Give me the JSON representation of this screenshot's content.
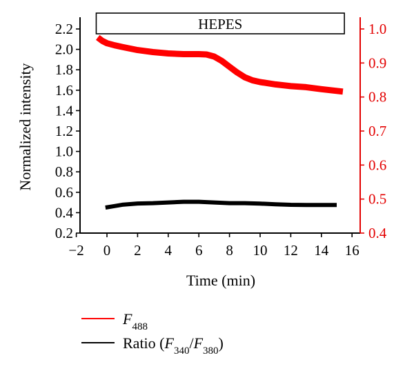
{
  "chart_data": {
    "type": "line",
    "xlabel": "Time (min)",
    "ylabel_left": "Normalized intensity",
    "ylabel_right": "",
    "xlim": [
      -2,
      16.5
    ],
    "ylim_left": [
      0.2,
      2.3
    ],
    "ylim_right": [
      0.4,
      1.03
    ],
    "x_ticks": [
      "−2",
      "0",
      "2",
      "4",
      "6",
      "8",
      "10",
      "12",
      "14",
      "16"
    ],
    "y_left_ticks": [
      "0.2",
      "0.4",
      "0.6",
      "0.8",
      "1.0",
      "1.2",
      "1.4",
      "1.6",
      "1.8",
      "2.0",
      "2.2"
    ],
    "y_right_ticks": [
      "0.4",
      "0.5",
      "0.6",
      "0.7",
      "0.8",
      "0.9",
      "1.0"
    ],
    "annotation": {
      "label": "HEPES",
      "x_start": -0.7,
      "x_end": 15.5
    },
    "series": [
      {
        "name": "F488",
        "axis": "right",
        "color": "#ff0000",
        "x": [
          -0.6,
          -0.3,
          0,
          0.5,
          1,
          2,
          3,
          4,
          5,
          6,
          6.5,
          7,
          7.5,
          8,
          8.5,
          9,
          9.5,
          10,
          11,
          12,
          13,
          14,
          15,
          15.4
        ],
        "y": [
          0.975,
          0.965,
          0.958,
          0.952,
          0.947,
          0.938,
          0.932,
          0.928,
          0.926,
          0.926,
          0.925,
          0.919,
          0.906,
          0.889,
          0.872,
          0.858,
          0.849,
          0.844,
          0.837,
          0.832,
          0.829,
          0.823,
          0.818,
          0.816
        ]
      },
      {
        "name": "Ratio (F340/F380)",
        "axis": "left",
        "color": "#000000",
        "x": [
          -0.1,
          0.5,
          1,
          2,
          3,
          4,
          5,
          6,
          7,
          8,
          9,
          10,
          11,
          12,
          13,
          14,
          15
        ],
        "y": [
          0.45,
          0.465,
          0.478,
          0.49,
          0.493,
          0.5,
          0.507,
          0.507,
          0.5,
          0.493,
          0.493,
          0.489,
          0.482,
          0.477,
          0.476,
          0.476,
          0.476
        ]
      }
    ],
    "legend": [
      {
        "color": "#ff0000",
        "main": "F",
        "sub1": "488",
        "pre": "",
        "mid": "",
        "main2": "",
        "sub2": "",
        "post": ""
      },
      {
        "color": "#000000",
        "pre": "Ratio (",
        "main": "F",
        "sub1": "340",
        "mid": "/",
        "main2": "F",
        "sub2": "380",
        "post": ")"
      }
    ]
  }
}
